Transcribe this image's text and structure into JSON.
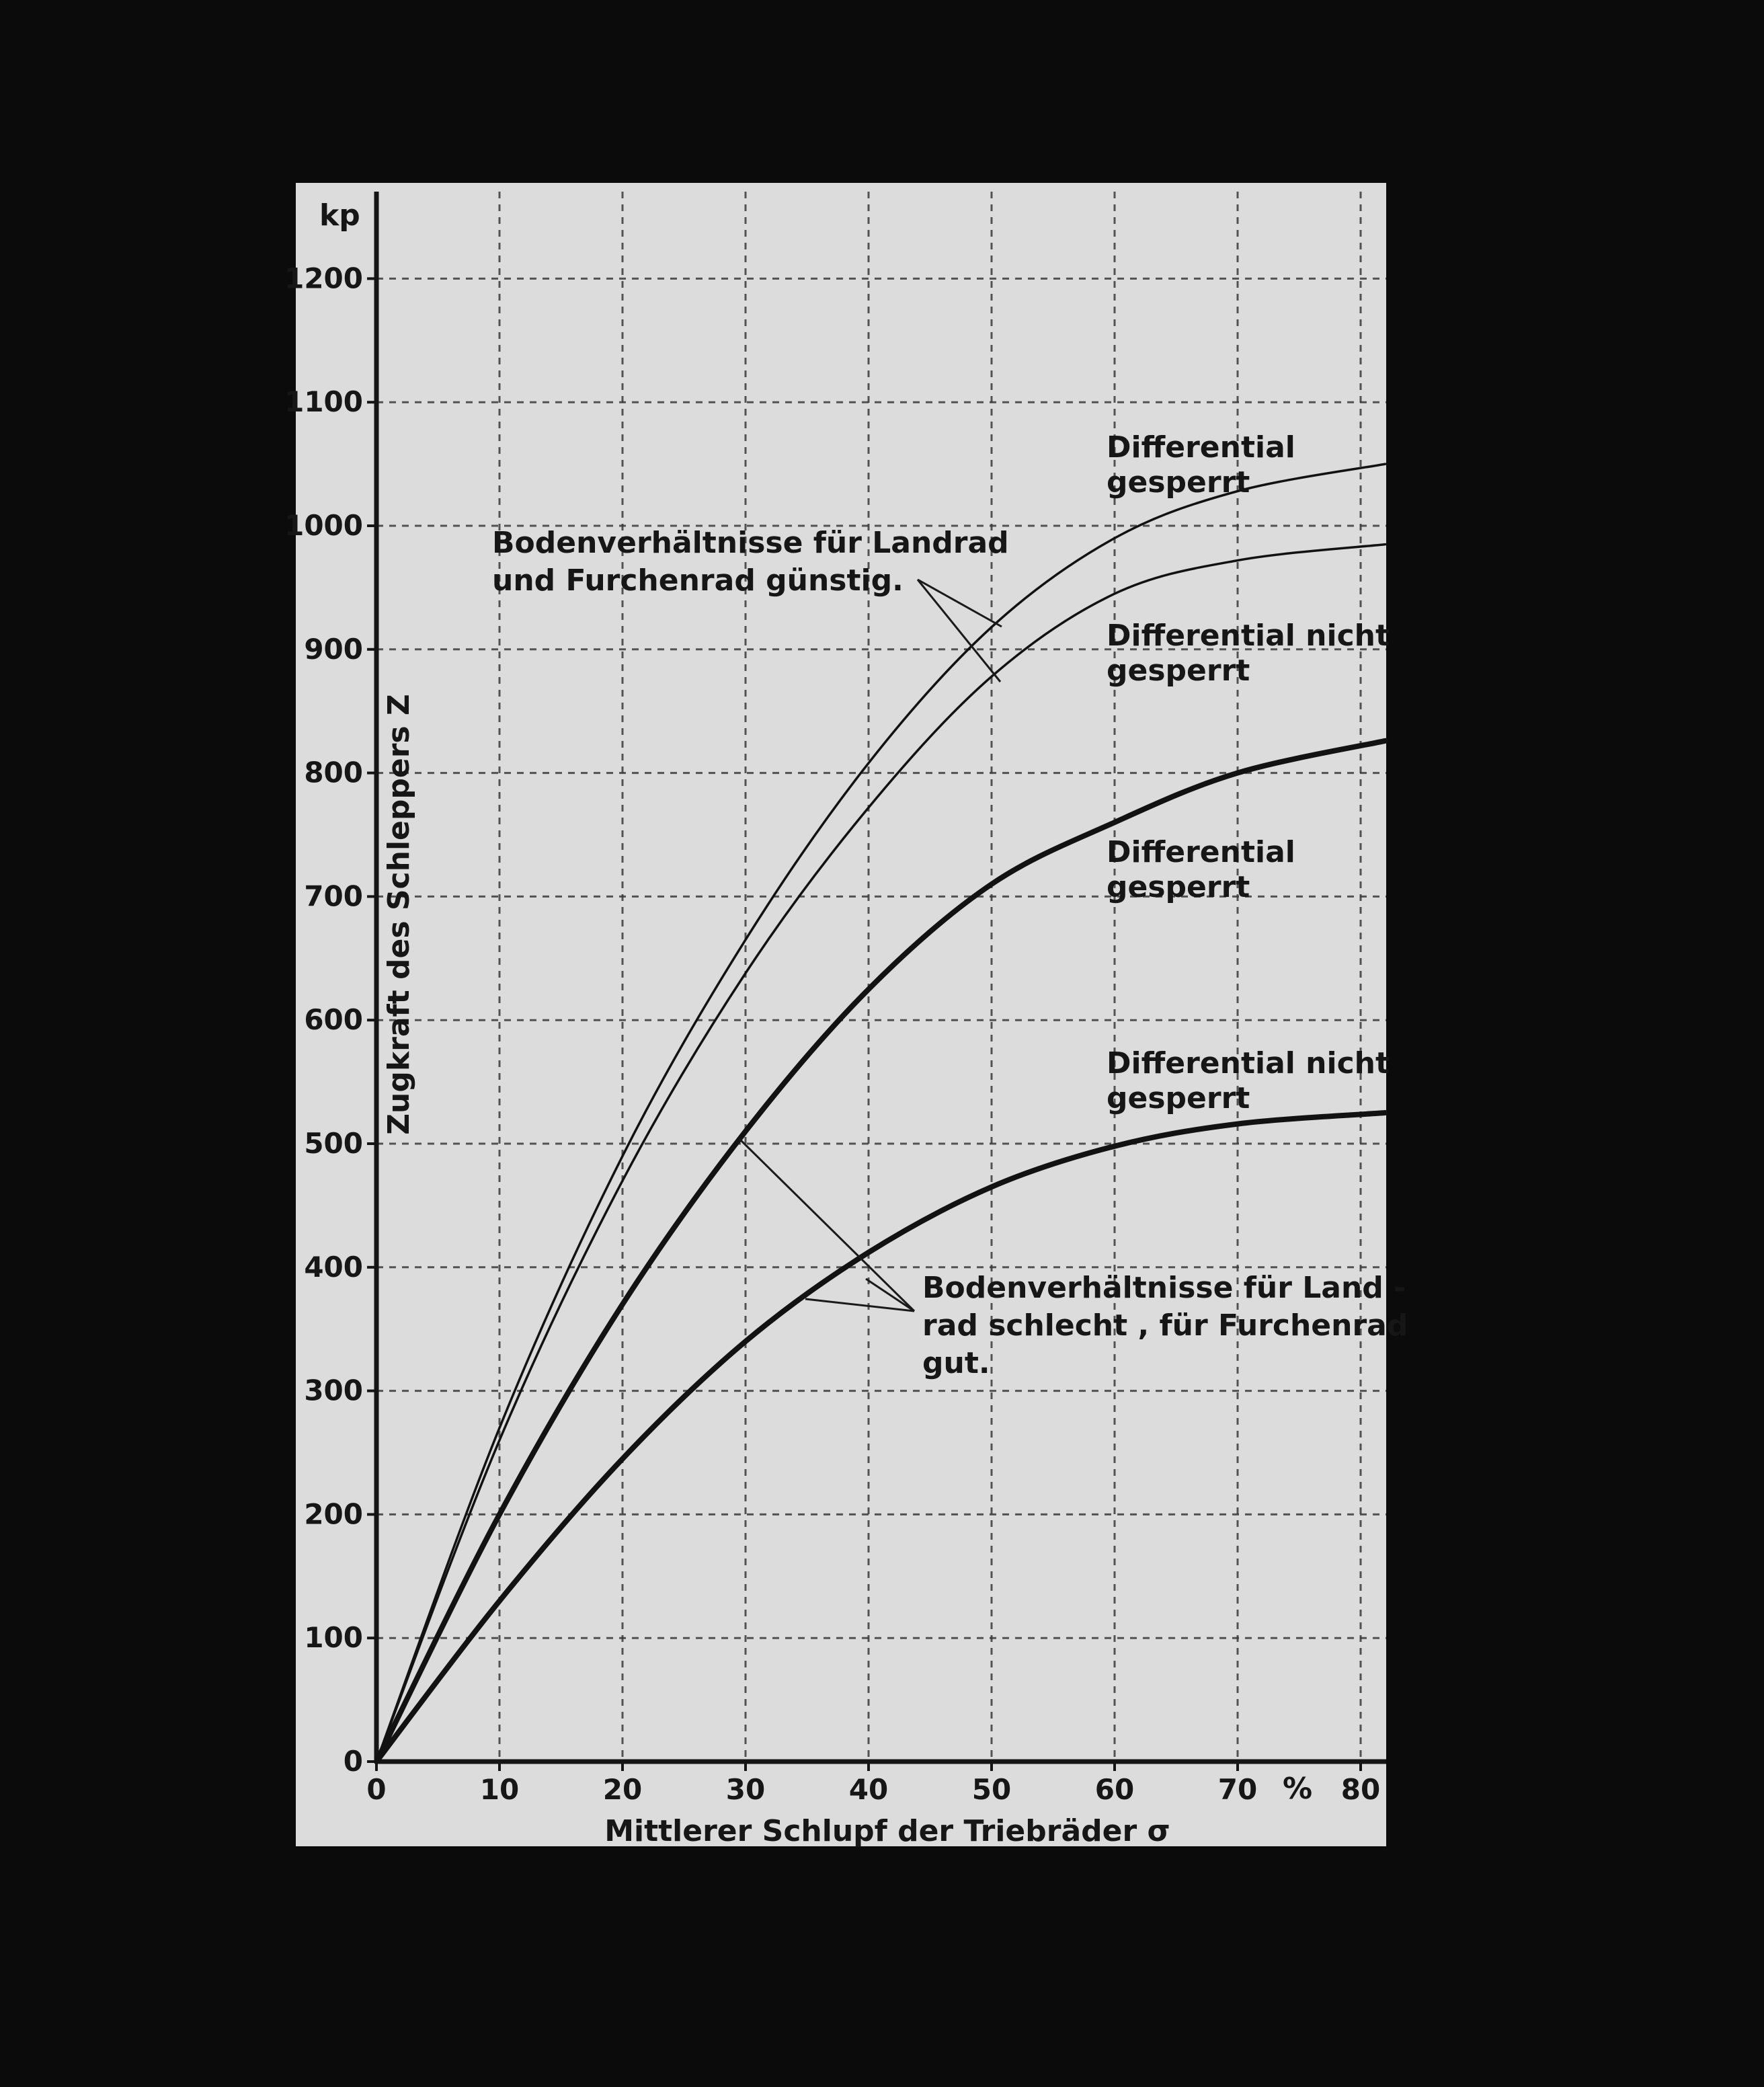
{
  "chart_data": {
    "type": "line",
    "ylabel": "Zugkraft des Schleppers  Z",
    "xlabel": "Mittlerer Schlupf der Triebräder  σ",
    "y_unit": "kp",
    "x_unit": "%",
    "xlim": [
      0,
      82
    ],
    "ylim": [
      0,
      1250
    ],
    "x_ticks": [
      0,
      10,
      20,
      30,
      40,
      50,
      60,
      70,
      80
    ],
    "y_ticks": [
      0,
      100,
      200,
      300,
      400,
      500,
      600,
      700,
      800,
      900,
      1000,
      1100,
      1200
    ],
    "grid": true,
    "series": [
      {
        "name": "Differential gesperrt",
        "stroke_width": 3.5,
        "x": [
          0,
          10,
          20,
          30,
          40,
          50,
          60,
          70,
          82
        ],
        "y": [
          0,
          270,
          490,
          665,
          808,
          918,
          990,
          1028,
          1050
        ]
      },
      {
        "name": "Differential nicht gesperrt",
        "stroke_width": 3.5,
        "x": [
          0,
          10,
          20,
          30,
          40,
          50,
          60,
          70,
          82
        ],
        "y": [
          0,
          260,
          470,
          638,
          772,
          878,
          945,
          972,
          985
        ]
      },
      {
        "name": "Differential gesperrt",
        "stroke_width": 8,
        "x": [
          0,
          10,
          20,
          30,
          40,
          50,
          60,
          70,
          82
        ],
        "y": [
          0,
          200,
          370,
          510,
          625,
          710,
          760,
          800,
          826
        ]
      },
      {
        "name": "Differential nicht gesperrt",
        "stroke_width": 8,
        "x": [
          0,
          10,
          20,
          30,
          40,
          50,
          60,
          70,
          82
        ],
        "y": [
          0,
          130,
          245,
          340,
          412,
          465,
          498,
          516,
          525
        ]
      }
    ],
    "annotations": {
      "curve_labels": [
        {
          "lines": [
            "Differential",
            "gesperrt"
          ]
        },
        {
          "lines": [
            "Differential  nicht",
            "gesperrt"
          ]
        },
        {
          "lines": [
            "Differential",
            "gesperrt"
          ]
        },
        {
          "lines": [
            "Differential  nicht",
            "gesperrt"
          ]
        }
      ],
      "group_good": {
        "lines": [
          "Bodenverhältnisse für Landrad",
          "und Furchenrad günstig."
        ]
      },
      "group_bad": {
        "lines": [
          "Bodenverhältnisse für Land -",
          "rad  schlecht , für Furchenrad",
          "gut."
        ]
      }
    }
  }
}
